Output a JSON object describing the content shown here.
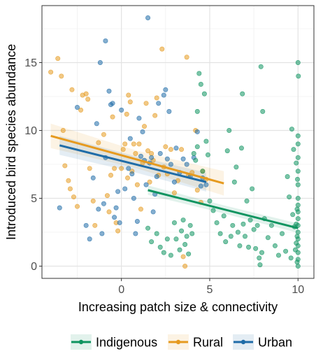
{
  "chart_data": {
    "type": "scatter",
    "xlabel": "Increasing patch size & connectivity",
    "ylabel": "Introduced bird species abundance",
    "xlim": [
      -4.5,
      10.9
    ],
    "ylim": [
      -0.9,
      19.2
    ],
    "x_ticks": [
      0,
      5,
      10
    ],
    "y_ticks": [
      0,
      5,
      10,
      15
    ],
    "x_tick_labels": [
      "0",
      "5",
      "10"
    ],
    "y_tick_labels": [
      "0",
      "5",
      "10",
      "15"
    ],
    "grid": true,
    "legend_position": "bottom",
    "series": [
      {
        "name": "Indigenous",
        "color": "#0f9460",
        "trend": {
          "x": [
            1.5,
            10
          ],
          "y": [
            5.6,
            2.8
          ],
          "band": [
            0.35,
            0.3
          ]
        },
        "points": [
          [
            1.5,
            2.8
          ],
          [
            1.7,
            1.8
          ],
          [
            2.0,
            2.4
          ],
          [
            2.2,
            1.4
          ],
          [
            2.4,
            1.0
          ],
          [
            2.6,
            2.0
          ],
          [
            2.8,
            0.8
          ],
          [
            3.0,
            3.2
          ],
          [
            3.1,
            2.0
          ],
          [
            3.3,
            1.2
          ],
          [
            3.4,
            2.6
          ],
          [
            3.5,
            3.4
          ],
          [
            3.6,
            1.6
          ],
          [
            3.7,
            2.2
          ],
          [
            3.8,
            0.9
          ],
          [
            3.9,
            3.0
          ],
          [
            4.0,
            2.4
          ],
          [
            4.1,
            8.3
          ],
          [
            4.2,
            7.8
          ],
          [
            4.3,
            8.8
          ],
          [
            4.4,
            14.2
          ],
          [
            4.5,
            13.4
          ],
          [
            4.6,
            7.0
          ],
          [
            4.7,
            12.7
          ],
          [
            4.3,
            11.4
          ],
          [
            4.8,
            9.2
          ],
          [
            4.9,
            8.2
          ],
          [
            5.0,
            4.8
          ],
          [
            5.2,
            4.1
          ],
          [
            5.4,
            3.2
          ],
          [
            5.6,
            2.4
          ],
          [
            5.8,
            3.7
          ],
          [
            5.9,
            1.8
          ],
          [
            6.0,
            8.5
          ],
          [
            6.1,
            10.0
          ],
          [
            6.2,
            2.2
          ],
          [
            6.3,
            3.0
          ],
          [
            6.4,
            6.2
          ],
          [
            6.5,
            7.3
          ],
          [
            6.6,
            2.5
          ],
          [
            6.7,
            1.5
          ],
          [
            6.8,
            8.7
          ],
          [
            6.85,
            12.7
          ],
          [
            6.9,
            3.1
          ],
          [
            7.0,
            2.2
          ],
          [
            7.1,
            4.8
          ],
          [
            7.2,
            1.4
          ],
          [
            7.3,
            3.4
          ],
          [
            7.4,
            5.7
          ],
          [
            7.5,
            2.7
          ],
          [
            7.6,
            1.3
          ],
          [
            7.7,
            3.0
          ],
          [
            7.8,
            0.6
          ],
          [
            7.85,
            0.1
          ],
          [
            7.9,
            14.7
          ],
          [
            7.95,
            1.0
          ],
          [
            8.0,
            11.4
          ],
          [
            8.1,
            3.5
          ],
          [
            8.3,
            2.1
          ],
          [
            8.5,
            3.0
          ],
          [
            8.7,
            1.5
          ],
          [
            8.9,
            0.8
          ],
          [
            9.1,
            2.4
          ],
          [
            9.3,
            1.1
          ],
          [
            9.4,
            6.6
          ],
          [
            9.5,
            5.1
          ],
          [
            9.6,
            0.6
          ],
          [
            9.65,
            10.1
          ],
          [
            9.7,
            3.8
          ],
          [
            9.75,
            8.6
          ],
          [
            9.8,
            2.9
          ],
          [
            9.85,
            1.2
          ],
          [
            9.9,
            7.6
          ],
          [
            9.95,
            0.3
          ],
          [
            10.0,
            15.0
          ],
          [
            10.02,
            14.0
          ],
          [
            10.0,
            9.6
          ],
          [
            10.0,
            9.0
          ],
          [
            10.0,
            8.0
          ],
          [
            10.0,
            7.0
          ],
          [
            10.0,
            6.0
          ],
          [
            10.0,
            5.0
          ],
          [
            10.0,
            4.5
          ],
          [
            10.0,
            4.0
          ],
          [
            10.0,
            3.5
          ],
          [
            10.0,
            3.0
          ],
          [
            10.0,
            2.5
          ],
          [
            10.0,
            2.0
          ],
          [
            10.0,
            1.5
          ],
          [
            10.0,
            1.0
          ],
          [
            10.0,
            0.5
          ],
          [
            10.0,
            0.0
          ],
          [
            9.95,
            4.2
          ],
          [
            9.95,
            2.2
          ],
          [
            9.97,
            6.4
          ],
          [
            9.9,
            3.1
          ],
          [
            9.9,
            1.7
          ]
        ]
      },
      {
        "name": "Rural",
        "color": "#e69a1f",
        "trend": {
          "x": [
            -4.0,
            5.8
          ],
          "y": [
            9.6,
            6.1
          ],
          "band": [
            0.9,
            0.65
          ]
        },
        "points": [
          [
            -4.0,
            14.3
          ],
          [
            -3.6,
            15.3
          ],
          [
            -3.4,
            14.0
          ],
          [
            -3.3,
            10.0
          ],
          [
            -3.2,
            7.4
          ],
          [
            -3.0,
            6.3
          ],
          [
            -2.9,
            5.7
          ],
          [
            -2.7,
            5.1
          ],
          [
            -2.8,
            13.0
          ],
          [
            -2.5,
            4.4
          ],
          [
            -2.3,
            11.5
          ],
          [
            -2.2,
            12.6
          ],
          [
            -2.0,
            12.7
          ],
          [
            -1.9,
            12.3
          ],
          [
            -1.8,
            7.2
          ],
          [
            -1.6,
            4.8
          ],
          [
            -1.5,
            3.0
          ],
          [
            -1.3,
            9.1
          ],
          [
            -1.0,
            9.7
          ],
          [
            -0.8,
            5.2
          ],
          [
            -0.7,
            4.0
          ],
          [
            -0.6,
            6.7
          ],
          [
            -0.5,
            11.0
          ],
          [
            -0.4,
            7.2
          ],
          [
            -0.3,
            3.2
          ],
          [
            -0.2,
            2.6
          ],
          [
            0.0,
            7.2
          ],
          [
            0.1,
            8.6
          ],
          [
            0.2,
            9.0
          ],
          [
            0.3,
            11.2
          ],
          [
            0.35,
            6.5
          ],
          [
            0.4,
            12.6
          ],
          [
            0.5,
            12.1
          ],
          [
            0.6,
            7.0
          ],
          [
            0.7,
            9.0
          ],
          [
            0.8,
            8.3
          ],
          [
            0.9,
            6.0
          ],
          [
            1.0,
            9.0
          ],
          [
            1.1,
            4.2
          ],
          [
            1.2,
            7.6
          ],
          [
            1.3,
            10.3
          ],
          [
            1.4,
            12.0
          ],
          [
            1.5,
            8.5
          ],
          [
            1.6,
            6.2
          ],
          [
            1.7,
            8.3
          ],
          [
            1.8,
            7.8
          ],
          [
            1.9,
            11.1
          ],
          [
            2.0,
            12.4
          ],
          [
            2.1,
            6.7
          ],
          [
            2.3,
            16.0
          ],
          [
            2.4,
            7.3
          ],
          [
            2.5,
            8.8
          ],
          [
            2.6,
            6.8
          ],
          [
            2.8,
            8.6
          ],
          [
            3.0,
            5.4
          ],
          [
            3.2,
            6.3
          ],
          [
            3.4,
            8.6
          ],
          [
            3.5,
            0.7
          ],
          [
            3.6,
            0.0
          ],
          [
            3.7,
            15.4
          ],
          [
            3.8,
            6.7
          ],
          [
            4.0,
            6.9
          ],
          [
            4.2,
            10.0
          ],
          [
            4.3,
            5.6
          ],
          [
            4.5,
            4.7
          ],
          [
            4.6,
            7.0
          ],
          [
            4.8,
            6.4
          ]
        ]
      },
      {
        "name": "Urban",
        "color": "#1f6ca8",
        "trend": {
          "x": [
            -3.5,
            4.8
          ],
          "y": [
            8.9,
            6.2
          ],
          "band": [
            0.7,
            0.6
          ]
        },
        "points": [
          [
            -3.5,
            4.3
          ],
          [
            -2.5,
            11.7
          ],
          [
            -2.0,
            3.0
          ],
          [
            -1.8,
            2.0
          ],
          [
            -1.6,
            6.5
          ],
          [
            -1.4,
            10.5
          ],
          [
            -1.3,
            4.2
          ],
          [
            -1.2,
            15.0
          ],
          [
            -1.1,
            2.4
          ],
          [
            -1.0,
            4.6
          ],
          [
            -0.9,
            8.0
          ],
          [
            -0.7,
            12.9
          ],
          [
            -0.6,
            11.9
          ],
          [
            -0.5,
            12.0
          ],
          [
            -0.4,
            3.6
          ],
          [
            -0.3,
            4.3
          ],
          [
            -0.2,
            5.5
          ],
          [
            -0.1,
            3.2
          ],
          [
            0.0,
            11.5
          ],
          [
            0.2,
            5.7
          ],
          [
            0.4,
            7.2
          ],
          [
            0.5,
            9.4
          ],
          [
            0.6,
            6.8
          ],
          [
            0.7,
            5.0
          ],
          [
            0.8,
            2.4
          ],
          [
            0.9,
            3.3
          ],
          [
            1.0,
            10.9
          ],
          [
            1.1,
            8.1
          ],
          [
            1.2,
            9.9
          ],
          [
            1.3,
            7.8
          ],
          [
            1.4,
            6.0
          ],
          [
            1.5,
            18.3
          ],
          [
            1.6,
            7.6
          ],
          [
            1.7,
            8.0
          ],
          [
            1.8,
            4.0
          ],
          [
            1.9,
            5.3
          ],
          [
            2.0,
            6.6
          ],
          [
            2.1,
            12.0
          ],
          [
            2.2,
            8.3
          ],
          [
            2.4,
            12.6
          ],
          [
            2.5,
            13.0
          ],
          [
            2.6,
            7.9
          ],
          [
            2.7,
            11.4
          ],
          [
            2.8,
            7.5
          ],
          [
            3.0,
            6.2
          ],
          [
            3.1,
            8.7
          ],
          [
            3.3,
            6.9
          ],
          [
            3.5,
            7.9
          ],
          [
            3.7,
            7.5
          ],
          [
            3.9,
            6.6
          ],
          [
            4.1,
            8.0
          ],
          [
            4.3,
            9.9
          ],
          [
            4.5,
            5.9
          ],
          [
            4.6,
            6.5
          ],
          [
            4.8,
            6.0
          ],
          [
            -0.9,
            16.6
          ]
        ]
      }
    ]
  }
}
